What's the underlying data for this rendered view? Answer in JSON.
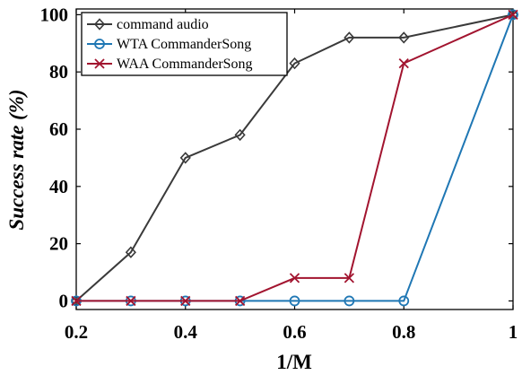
{
  "chart_data": {
    "type": "line",
    "title": "",
    "xlabel": "1/M",
    "ylabel": "Success rate (%)",
    "xlim": [
      0.2,
      1.0
    ],
    "ylim": [
      -3,
      102
    ],
    "x_ticks": [
      0.2,
      0.4,
      0.6,
      0.8,
      1
    ],
    "x_tick_labels": [
      "0.2",
      "0.4",
      "0.6",
      "0.8",
      "1"
    ],
    "y_ticks": [
      0,
      20,
      40,
      60,
      80,
      100
    ],
    "y_tick_labels": [
      "0",
      "20",
      "40",
      "60",
      "80",
      "100"
    ],
    "grid": false,
    "legend_position": "top-left",
    "x": [
      0.2,
      0.3,
      0.4,
      0.5,
      0.6,
      0.7,
      0.8,
      1.0
    ],
    "series": [
      {
        "name": "command audio",
        "marker": "diamond",
        "color": "#3a3a3a",
        "values": [
          0,
          17,
          50,
          58,
          83,
          92,
          92,
          100
        ]
      },
      {
        "name": "WTA CommanderSong",
        "marker": "circle",
        "color": "#1f77b4",
        "values": [
          0,
          0,
          0,
          0,
          0,
          0,
          0,
          100
        ]
      },
      {
        "name": "WAA CommanderSong",
        "marker": "x",
        "color": "#a2142f",
        "values": [
          0,
          0,
          0,
          0,
          8,
          8,
          83,
          100
        ]
      }
    ]
  }
}
